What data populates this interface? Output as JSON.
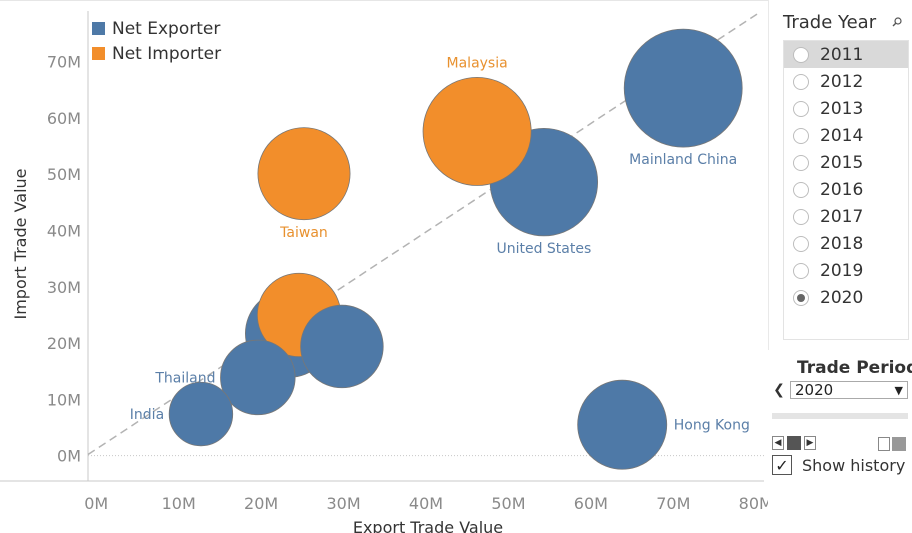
{
  "legend": [
    {
      "label": "Net Exporter",
      "color": "#4e79a7"
    },
    {
      "label": "Net Importer",
      "color": "#f28e2b"
    }
  ],
  "chart_data": {
    "type": "scatter",
    "title": "",
    "xlabel": "Export Trade Value",
    "ylabel": "Import Trade Value",
    "xlim": [
      -1,
      81
    ],
    "ylim": [
      -4.5,
      79
    ],
    "xticks": [
      {
        "v": 0,
        "label": "0M"
      },
      {
        "v": 10,
        "label": "10M"
      },
      {
        "v": 20,
        "label": "20M"
      },
      {
        "v": 30,
        "label": "30M"
      },
      {
        "v": 40,
        "label": "40M"
      },
      {
        "v": 50,
        "label": "50M"
      },
      {
        "v": 60,
        "label": "60M"
      },
      {
        "v": 70,
        "label": "70M"
      },
      {
        "v": 80,
        "label": "80M"
      }
    ],
    "yticks": [
      {
        "v": 0,
        "label": "0M"
      },
      {
        "v": 10,
        "label": "10M"
      },
      {
        "v": 20,
        "label": "20M"
      },
      {
        "v": 30,
        "label": "30M"
      },
      {
        "v": 40,
        "label": "40M"
      },
      {
        "v": 50,
        "label": "50M"
      },
      {
        "v": 60,
        "label": "60M"
      },
      {
        "v": 70,
        "label": "70M"
      }
    ],
    "reference_line": {
      "x1": -1,
      "y1": 0.2,
      "x2": 80.2,
      "y2": 78.5
    },
    "points": [
      {
        "label": "Mainland China",
        "x": 71.2,
        "y": 65.3,
        "size": 100,
        "category": "Net Exporter",
        "label_pos": "below"
      },
      {
        "label": "United States",
        "x": 54.3,
        "y": 48.6,
        "size": 83,
        "category": "Net Exporter",
        "label_pos": "below"
      },
      {
        "label": "Malaysia",
        "x": 46.2,
        "y": 57.6,
        "size": 84,
        "category": "Net Importer",
        "label_pos": "above"
      },
      {
        "label": "Taiwan",
        "x": 25.2,
        "y": 50.1,
        "size": 61,
        "category": "Net Importer",
        "label_pos": "below"
      },
      {
        "label": "Hong Kong",
        "x": 63.8,
        "y": 5.5,
        "size": 57,
        "category": "Net Exporter",
        "label_pos": "right"
      },
      {
        "label": "",
        "x": 23.4,
        "y": 21.7,
        "size": 55,
        "category": "Net Exporter",
        "label_pos": "none"
      },
      {
        "label": "",
        "x": 24.6,
        "y": 25.0,
        "size": 50,
        "category": "Net Importer",
        "label_pos": "none"
      },
      {
        "label": "",
        "x": 29.8,
        "y": 19.4,
        "size": 49,
        "category": "Net Exporter",
        "label_pos": "none"
      },
      {
        "label": "Thailand",
        "x": 19.6,
        "y": 13.9,
        "size": 40,
        "category": "Net Exporter",
        "label_pos": "left"
      },
      {
        "label": "India",
        "x": 12.7,
        "y": 7.4,
        "size": 29,
        "category": "Net Exporter",
        "label_pos": "left"
      }
    ]
  },
  "filter": {
    "title": "Trade Year",
    "years": [
      "2011",
      "2012",
      "2013",
      "2014",
      "2015",
      "2016",
      "2017",
      "2018",
      "2019",
      "2020"
    ],
    "selected": "2020"
  },
  "period": {
    "title": "Trade Period",
    "value": "2020",
    "prev_icon": "❮",
    "dropdown_icon": "▼",
    "show_history_label": "Show history",
    "show_history_checked": true
  }
}
